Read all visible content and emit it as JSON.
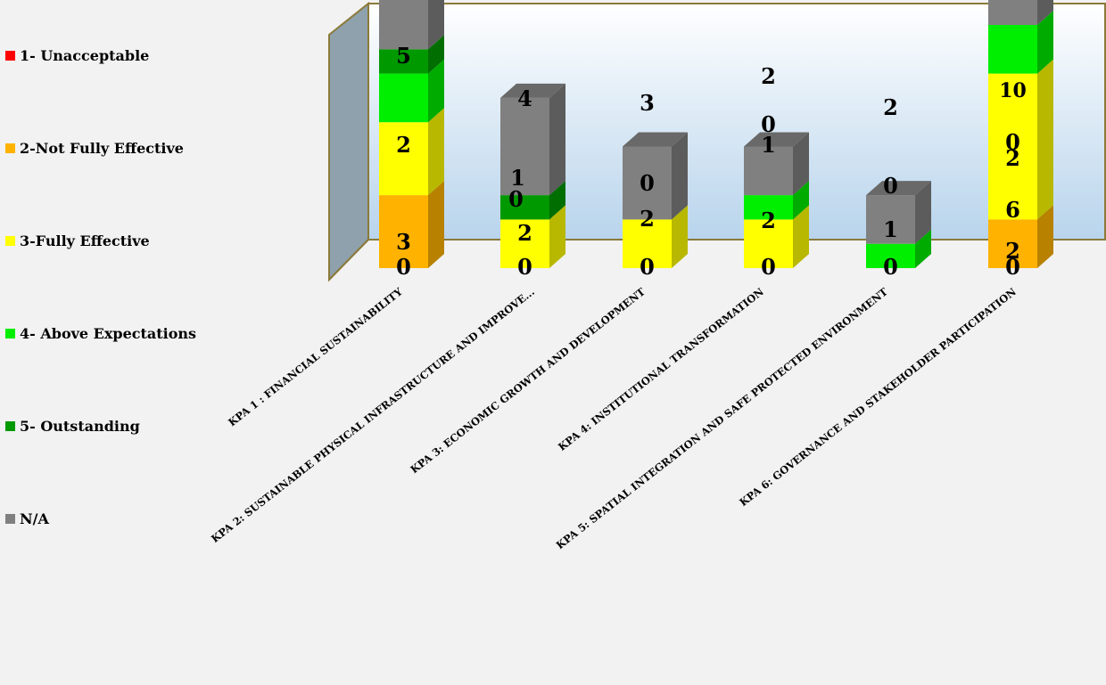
{
  "chart_data": {
    "type": "bar",
    "stacked": true,
    "three_d": true,
    "legend_placement": "left",
    "categories": [
      "KPA 1 : FINANCIAL SUSTAINABILITY",
      "KPA 2:  SUSTAINABLE  PHYSICAL INFRASTRUCTURE  AND IMPROVE...",
      "KPA 3: ECONOMIC GROWTH AND DEVELOPMENT",
      "KPA 4: INSTITUTIONAL TRANSFORMATION",
      "KPA 5: SPATIAL INTEGRATION AND SAFE PROTECTED  ENVIRONMENT",
      "KPA 6: GOVERNANCE AND STAKEHOLDER PARTICIPATION"
    ],
    "series": [
      {
        "name": "1- Unacceptable",
        "color": "#ff0000",
        "values": [
          0,
          0,
          0,
          0,
          0,
          0
        ]
      },
      {
        "name": "2-Not Fully Effective",
        "color": "#ffb300",
        "values": [
          3,
          0,
          0,
          0,
          0,
          2
        ]
      },
      {
        "name": "3-Fully Effective",
        "color": "#ffff00",
        "values": [
          3,
          2,
          2,
          2,
          0,
          6
        ]
      },
      {
        "name": "4- Above Expectations",
        "color": "#00ee00",
        "values": [
          2,
          0,
          0,
          1,
          1,
          2
        ]
      },
      {
        "name": "5- Outstanding",
        "color": "#009900",
        "values": [
          1,
          1,
          0,
          0,
          0,
          0
        ]
      },
      {
        "name": "N/A",
        "color": "#808080",
        "values": [
          5,
          4,
          3,
          2,
          2,
          10
        ]
      }
    ],
    "data_labels": [
      [
        "0",
        "3",
        "",
        "2",
        "",
        "5"
      ],
      [
        "0",
        "",
        "2",
        "0",
        "1",
        "4"
      ],
      [
        "0",
        "",
        "2",
        "",
        "0",
        "3"
      ],
      [
        "0",
        "",
        "2",
        "1",
        "0",
        "2"
      ],
      [
        "0",
        "",
        "",
        "1",
        "0",
        "2"
      ],
      [
        "0",
        "2",
        "6",
        "2",
        "0",
        "10"
      ]
    ],
    "yaxis_visible": false,
    "grid": false
  }
}
